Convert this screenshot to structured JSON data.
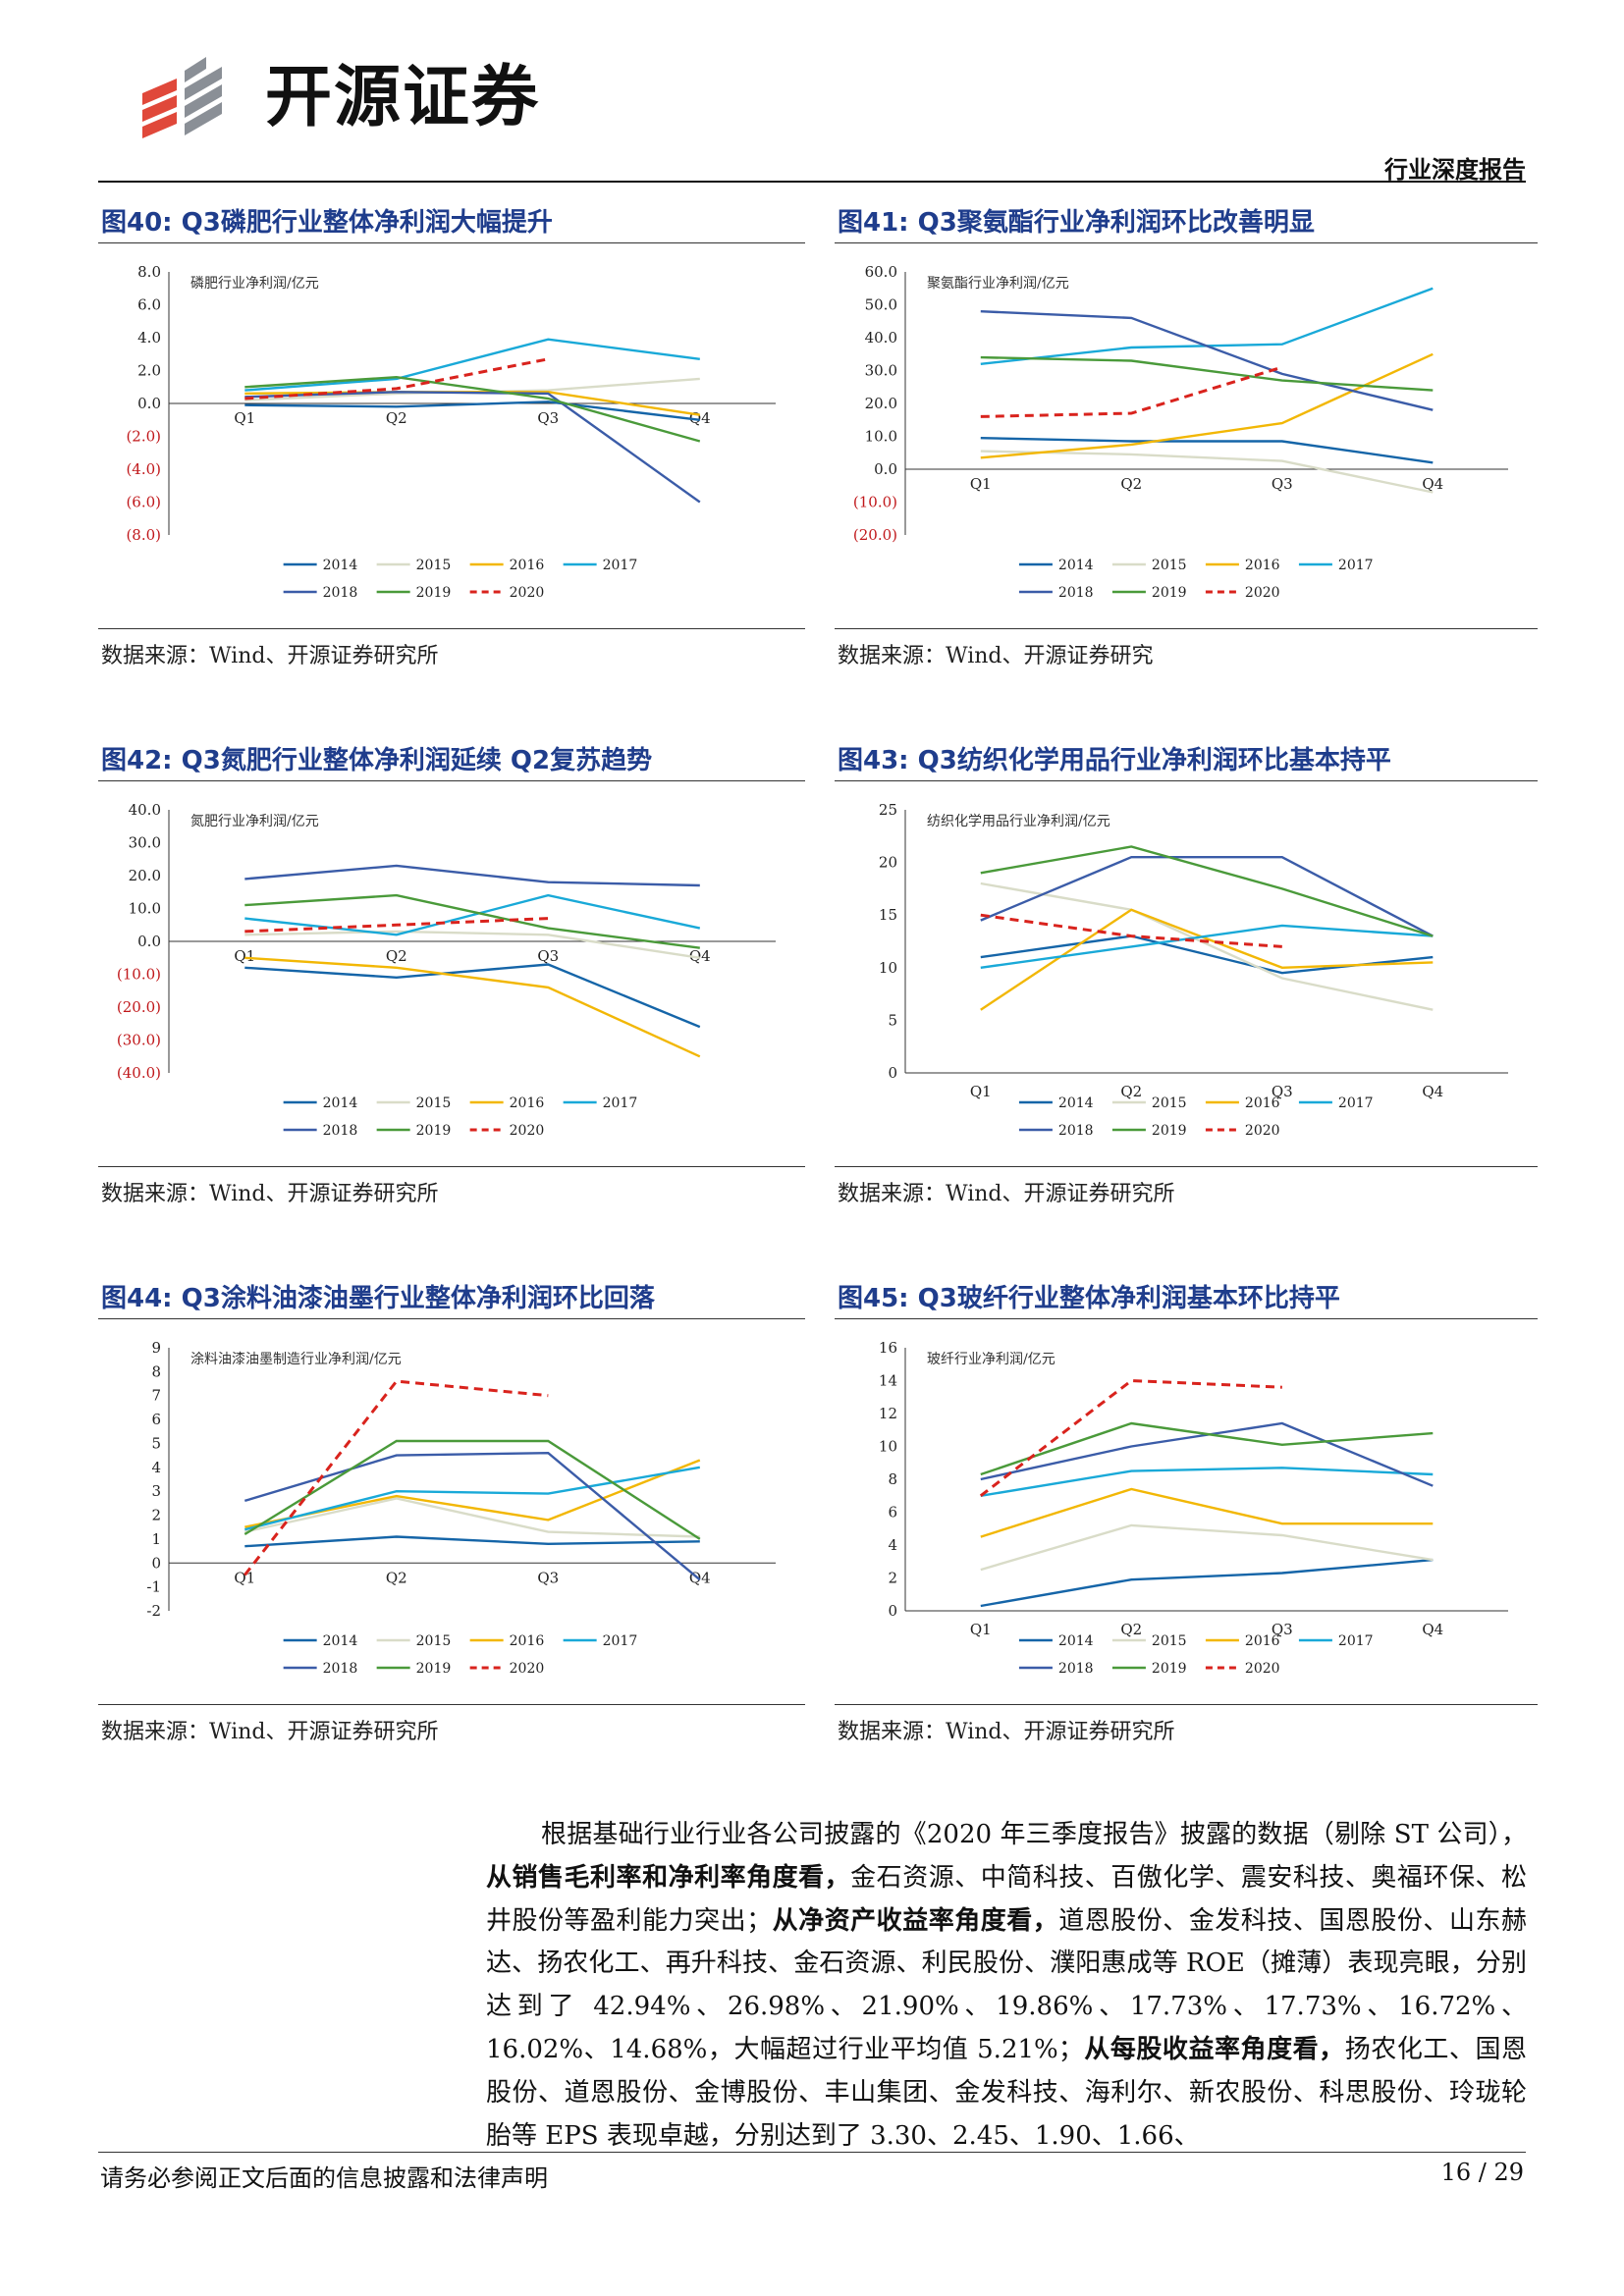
{
  "header": {
    "brand": "开源证券",
    "doc_type": "行业深度报告"
  },
  "colors": {
    "2014": "#1565a8",
    "2015": "#d9dcc8",
    "2016": "#f2b705",
    "2017": "#19a9d8",
    "2018": "#3b5ca8",
    "2019": "#4a9a3a",
    "2020": "#d9231d",
    "title": "#1f3d8c",
    "logo_red": "#e0483a"
  },
  "figures": [
    {
      "title": "图40: Q3磷肥行业整体净利润大幅提升",
      "source": "数据来源：Wind、开源证券研究所",
      "chart_data": {
        "type": "line",
        "inner_label": "磷肥行业净利润/亿元",
        "categories": [
          "Q1",
          "Q2",
          "Q3",
          "Q4"
        ],
        "y_ticks": [
          "8.0",
          "6.0",
          "4.0",
          "2.0",
          "0.0",
          "(2.0)",
          "(4.0)",
          "(6.0)",
          "(8.0)"
        ],
        "ylim": [
          -8,
          8
        ],
        "series": [
          {
            "name": "2014",
            "values": [
              -0.1,
              -0.2,
              0.1,
              -1.0
            ]
          },
          {
            "name": "2015",
            "values": [
              0.2,
              0.6,
              0.8,
              1.5
            ]
          },
          {
            "name": "2016",
            "values": [
              0.6,
              0.7,
              0.7,
              -0.7
            ]
          },
          {
            "name": "2017",
            "values": [
              0.8,
              1.5,
              3.9,
              2.7
            ]
          },
          {
            "name": "2018",
            "values": [
              0.4,
              0.7,
              0.6,
              -6.0
            ]
          },
          {
            "name": "2019",
            "values": [
              1.0,
              1.6,
              0.3,
              -2.3
            ]
          },
          {
            "name": "2020",
            "values": [
              0.3,
              0.9,
              2.7,
              null
            ],
            "dashed": true
          }
        ]
      }
    },
    {
      "title": "图41: Q3聚氨酯行业净利润环比改善明显",
      "source": "数据来源：Wind、开源证券研究",
      "chart_data": {
        "type": "line",
        "inner_label": "聚氨酯行业净利润/亿元",
        "categories": [
          "Q1",
          "Q2",
          "Q3",
          "Q4"
        ],
        "y_ticks": [
          "60.0",
          "50.0",
          "40.0",
          "30.0",
          "20.0",
          "10.0",
          "0.0",
          "(10.0)",
          "(20.0)"
        ],
        "ylim": [
          -20,
          60
        ],
        "series": [
          {
            "name": "2014",
            "values": [
              9.5,
              8.5,
              8.5,
              2.0
            ]
          },
          {
            "name": "2015",
            "values": [
              5.5,
              4.5,
              2.5,
              -7.0
            ]
          },
          {
            "name": "2016",
            "values": [
              3.5,
              7.5,
              14.0,
              35.0
            ]
          },
          {
            "name": "2017",
            "values": [
              32.0,
              37.0,
              38.0,
              55.0
            ]
          },
          {
            "name": "2018",
            "values": [
              48.0,
              46.0,
              29.0,
              18.0
            ]
          },
          {
            "name": "2019",
            "values": [
              34.0,
              33.0,
              27.0,
              24.0
            ]
          },
          {
            "name": "2020",
            "values": [
              16.0,
              17.0,
              31.0,
              null
            ],
            "dashed": true
          }
        ]
      }
    },
    {
      "title": "图42: Q3氮肥行业整体净利润延续 Q2复苏趋势",
      "source": "数据来源：Wind、开源证券研究所",
      "chart_data": {
        "type": "line",
        "inner_label": "氮肥行业净利润/亿元",
        "categories": [
          "Q1",
          "Q2",
          "Q3",
          "Q4"
        ],
        "y_ticks": [
          "40.0",
          "30.0",
          "20.0",
          "10.0",
          "0.0",
          "(10.0)",
          "(20.0)",
          "(30.0)",
          "(40.0)"
        ],
        "ylim": [
          -40,
          40
        ],
        "series": [
          {
            "name": "2014",
            "values": [
              -8.0,
              -11.0,
              -7.0,
              -26.0
            ]
          },
          {
            "name": "2015",
            "values": [
              2.0,
              3.0,
              2.0,
              -5.0
            ]
          },
          {
            "name": "2016",
            "values": [
              -5.0,
              -8.0,
              -14.0,
              -35.0
            ]
          },
          {
            "name": "2017",
            "values": [
              7.0,
              2.0,
              14.0,
              4.0
            ]
          },
          {
            "name": "2018",
            "values": [
              19.0,
              23.0,
              18.0,
              17.0
            ]
          },
          {
            "name": "2019",
            "values": [
              11.0,
              14.0,
              4.0,
              -2.0
            ]
          },
          {
            "name": "2020",
            "values": [
              3.0,
              5.0,
              7.0,
              null
            ],
            "dashed": true
          }
        ]
      }
    },
    {
      "title": "图43: Q3纺织化学用品行业净利润环比基本持平",
      "source": "数据来源：Wind、开源证券研究所",
      "chart_data": {
        "type": "line",
        "inner_label": "纺织化学用品行业净利润/亿元",
        "categories": [
          "Q1",
          "Q2",
          "Q3",
          "Q4"
        ],
        "y_ticks": [
          "25",
          "20",
          "15",
          "10",
          "5",
          "0"
        ],
        "ylim": [
          0,
          25
        ],
        "series": [
          {
            "name": "2014",
            "values": [
              11.0,
              13.0,
              9.5,
              11.0
            ]
          },
          {
            "name": "2015",
            "values": [
              18.0,
              15.5,
              9.0,
              6.0
            ]
          },
          {
            "name": "2016",
            "values": [
              6.0,
              15.5,
              10.0,
              10.5
            ]
          },
          {
            "name": "2017",
            "values": [
              10.0,
              12.0,
              14.0,
              13.0
            ]
          },
          {
            "name": "2018",
            "values": [
              14.5,
              20.5,
              20.5,
              13.0
            ]
          },
          {
            "name": "2019",
            "values": [
              19.0,
              21.5,
              17.5,
              13.0
            ]
          },
          {
            "name": "2020",
            "values": [
              15.0,
              13.0,
              12.0,
              null
            ],
            "dashed": true
          }
        ]
      }
    },
    {
      "title": "图44: Q3涂料油漆油墨行业整体净利润环比回落",
      "source": "数据来源：Wind、开源证券研究所",
      "chart_data": {
        "type": "line",
        "inner_label": "涂料油漆油墨制造行业净利润/亿元",
        "categories": [
          "Q1",
          "Q2",
          "Q3",
          "Q4"
        ],
        "y_ticks": [
          "9",
          "8",
          "7",
          "6",
          "5",
          "4",
          "3",
          "2",
          "1",
          "0",
          "-1",
          "-2"
        ],
        "ylim": [
          -2,
          9
        ],
        "series": [
          {
            "name": "2014",
            "values": [
              0.7,
              1.1,
              0.8,
              0.9
            ]
          },
          {
            "name": "2015",
            "values": [
              1.3,
              2.7,
              1.3,
              1.1
            ]
          },
          {
            "name": "2016",
            "values": [
              1.5,
              2.8,
              1.8,
              4.3
            ]
          },
          {
            "name": "2017",
            "values": [
              1.4,
              3.0,
              2.9,
              4.0
            ]
          },
          {
            "name": "2018",
            "values": [
              2.6,
              4.5,
              4.6,
              -0.7
            ]
          },
          {
            "name": "2019",
            "values": [
              1.2,
              5.1,
              5.1,
              1.0
            ]
          },
          {
            "name": "2020",
            "values": [
              -0.5,
              7.6,
              7.0,
              null
            ],
            "dashed": true
          }
        ]
      }
    },
    {
      "title": "图45: Q3玻纤行业整体净利润基本环比持平",
      "source": "数据来源：Wind、开源证券研究所",
      "chart_data": {
        "type": "line",
        "inner_label": "玻纤行业净利润/亿元",
        "categories": [
          "Q1",
          "Q2",
          "Q3",
          "Q4"
        ],
        "y_ticks": [
          "16",
          "14",
          "12",
          "10",
          "8",
          "6",
          "4",
          "2",
          "0"
        ],
        "ylim": [
          0,
          16
        ],
        "series": [
          {
            "name": "2014",
            "values": [
              0.3,
              1.9,
              2.3,
              3.1
            ]
          },
          {
            "name": "2015",
            "values": [
              2.5,
              5.2,
              4.6,
              3.1
            ]
          },
          {
            "name": "2016",
            "values": [
              4.5,
              7.4,
              5.3,
              5.3
            ]
          },
          {
            "name": "2017",
            "values": [
              7.0,
              8.5,
              8.7,
              8.3
            ]
          },
          {
            "name": "2018",
            "values": [
              8.0,
              10.0,
              11.4,
              7.6
            ]
          },
          {
            "name": "2019",
            "values": [
              8.3,
              11.4,
              10.1,
              10.8
            ]
          },
          {
            "name": "2020",
            "values": [
              7.0,
              14.0,
              13.6,
              null
            ],
            "dashed": true
          }
        ]
      }
    }
  ],
  "body": {
    "p1_a": "根据基础行业行业各公司披露的《2020 年三季度报告》披露的数据（剔除 ST 公司），",
    "p1_b": "从销售毛利率和净利率角度看，",
    "p1_c": "金石资源、中简科技、百傲化学、震安科技、奥福环保、松井股份等盈利能力突出；",
    "p1_d": "从净资产收益率角度看，",
    "p1_e": "道恩股份、金发科技、国恩股份、山东赫达、扬农化工、再升科技、金石资源、利民股份、濮阳惠成等 ROE（摊薄）表现亮眼，分别达到了 42.94%、26.98%、21.90%、19.86%、17.73%、17.73%、16.72%、16.02%、14.68%，大幅超过行业平均值 5.21%；",
    "p1_f": "从每股收益率角度看，",
    "p1_g": "扬农化工、国恩股份、道恩股份、金博股份、丰山集团、金发科技、海利尔、新农股份、科思股份、玲珑轮胎等 EPS 表现卓越，分别达到了 3.30、2.45、1.90、1.66、"
  },
  "footer": {
    "note": "请务必参阅正文后面的信息披露和法律声明",
    "page": "16 / 29"
  }
}
